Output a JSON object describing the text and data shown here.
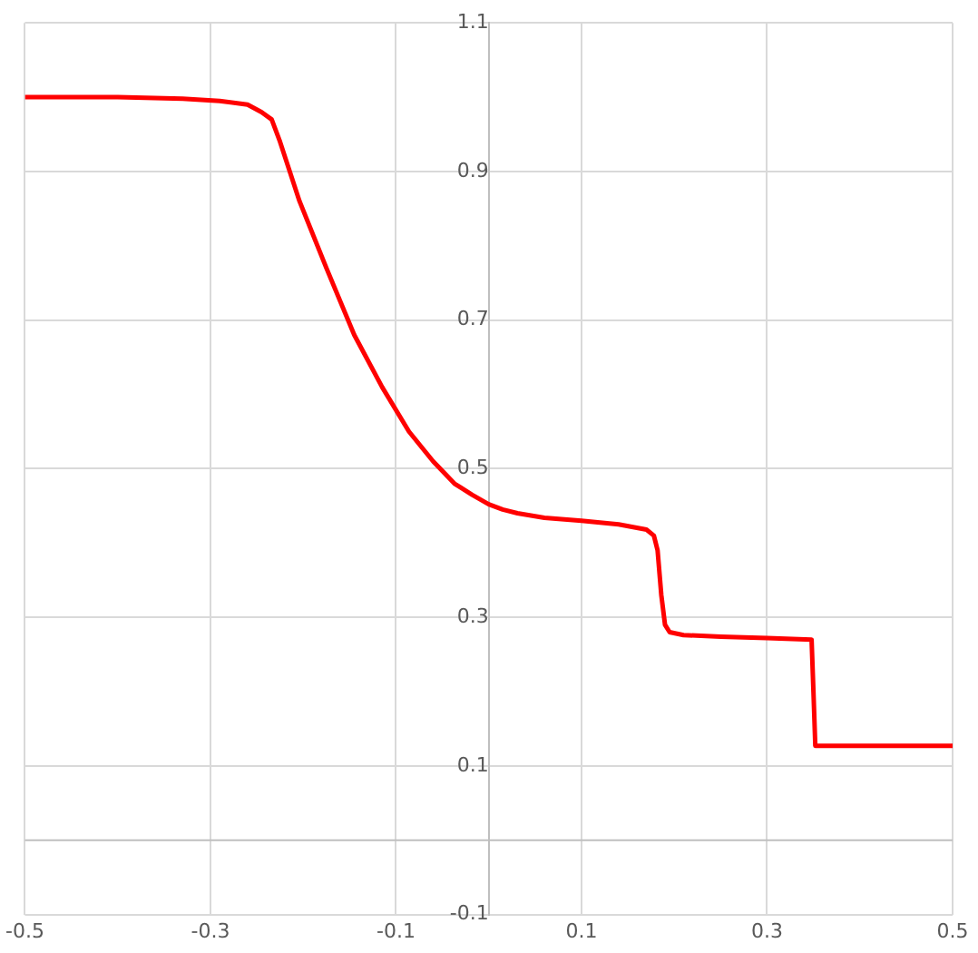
{
  "chart_data": {
    "type": "line",
    "x": [
      -0.5,
      -0.4,
      -0.33,
      -0.29,
      -0.26,
      -0.245,
      -0.234,
      -0.225,
      -0.204,
      -0.175,
      -0.145,
      -0.115,
      -0.086,
      -0.06,
      -0.037,
      -0.018,
      0,
      0.015,
      0.031,
      0.06,
      0.1,
      0.14,
      0.17,
      0.178,
      0.182,
      0.186,
      0.19,
      0.195,
      0.21,
      0.25,
      0.3,
      0.348,
      0.35,
      0.352,
      0.4,
      0.45,
      0.5
    ],
    "series": [
      {
        "color": "#ff0000",
        "values": [
          1,
          1,
          0.998,
          0.995,
          0.99,
          0.98,
          0.97,
          0.94,
          0.86,
          0.77,
          0.68,
          0.61,
          0.55,
          0.51,
          0.48,
          0.465,
          0.452,
          0.445,
          0.44,
          0.434,
          0.43,
          0.425,
          0.418,
          0.41,
          0.39,
          0.33,
          0.29,
          0.28,
          0.276,
          0.274,
          0.272,
          0.27,
          0.2,
          0.127,
          0.127,
          0.127,
          0.127
        ]
      }
    ],
    "xlim": [
      -0.5,
      0.5
    ],
    "xticks": [
      -0.5,
      -0.3,
      -0.1,
      0.1,
      0.3,
      0.5
    ],
    "ylim": [
      -0.1,
      1.1
    ],
    "yticks": [
      -0.1,
      0.1,
      0.3,
      0.5,
      0.7,
      0.9,
      1.1
    ],
    "grid": true,
    "legend": false,
    "marker": "none",
    "line_style": "solid"
  }
}
